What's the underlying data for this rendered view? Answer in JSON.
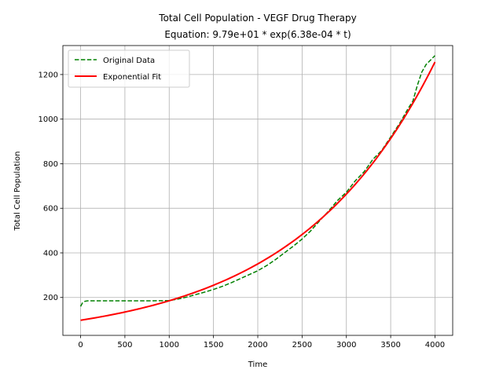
{
  "chart_data": {
    "type": "line",
    "title_line1": "Total Cell Population - VEGF Drug Therapy",
    "title_line2": "Equation: 9.79e+01 * exp(6.38e-04 * t)",
    "xlabel": "Time",
    "ylabel": "Total Cell Population",
    "xlim": [
      -200,
      4200
    ],
    "ylim": [
      30,
      1330
    ],
    "xticks": [
      0,
      500,
      1000,
      1500,
      2000,
      2500,
      3000,
      3500,
      4000
    ],
    "yticks": [
      200,
      400,
      600,
      800,
      1000,
      1200
    ],
    "grid": true,
    "legend_position": "top-left",
    "series": [
      {
        "name": "Original Data",
        "color": "#008000",
        "style": "dashed",
        "x": [
          0,
          20,
          50,
          80,
          100,
          200,
          400,
          600,
          800,
          1000,
          1100,
          1200,
          1300,
          1400,
          1500,
          1600,
          1700,
          1800,
          1900,
          2000,
          2100,
          2200,
          2300,
          2400,
          2500,
          2600,
          2700,
          2800,
          2900,
          3000,
          3100,
          3200,
          3300,
          3400,
          3500,
          3600,
          3700,
          3750,
          3800,
          3850,
          3900,
          3950,
          4000
        ],
        "y": [
          160,
          175,
          183,
          185,
          185,
          185,
          185,
          185,
          185,
          186,
          193,
          202,
          213,
          224,
          236,
          250,
          266,
          284,
          302,
          320,
          343,
          370,
          400,
          430,
          462,
          500,
          545,
          588,
          635,
          672,
          723,
          764,
          820,
          860,
          920,
          980,
          1050,
          1080,
          1150,
          1210,
          1245,
          1265,
          1285
        ]
      },
      {
        "name": "Exponential Fit",
        "color": "#ff0000",
        "style": "solid",
        "a": 97.9,
        "b": 0.000638,
        "x_range": [
          0,
          4000
        ]
      }
    ]
  }
}
